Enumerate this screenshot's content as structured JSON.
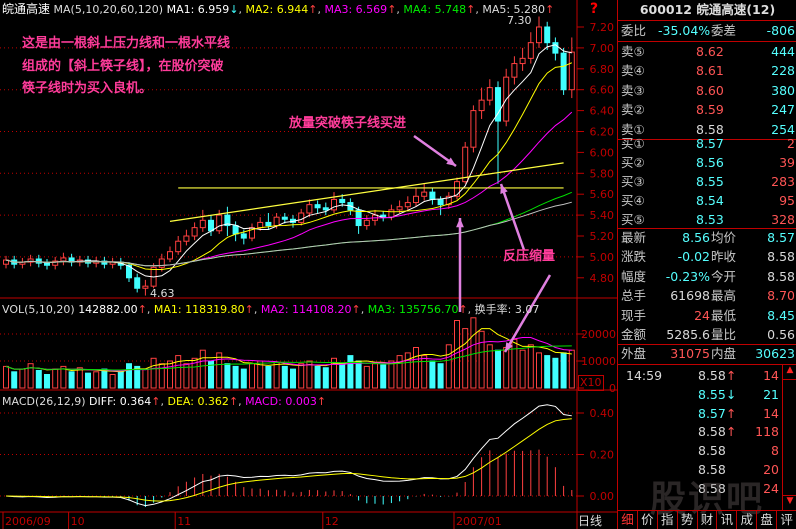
{
  "stock_title": "皖通高速",
  "ma_header": {
    "label": "MA(5,10,20,60,120)",
    "ma1": "MA1: 6.959",
    "ma2": "MA2: 6.944",
    "ma3": "MA3: 6.569",
    "ma4": "MA4: 5.748",
    "ma5": "MA5: 5.280",
    "up": "↑",
    "down": "↓",
    "sep": ","
  },
  "vol_header": {
    "label": "VOL(5,10,20)",
    "value": "142882.00",
    "ma1": "MA1: 118319.80",
    "ma2": "MA2: 114108.20",
    "ma3": "MA3: 135756.70",
    "turnover": "换手率: 3.07"
  },
  "macd_header": {
    "label": "MACD(26,12,9)",
    "diff": "DIFF: 0.364",
    "dea": "DEA: 0.362",
    "macd": "MACD: 0.003"
  },
  "help_icon": "?",
  "period_label": "日线",
  "vol_multiplier": "X10",
  "annotations": {
    "intro": [
      "这是由一根斜上压力线和一根水平线",
      "组成的【斜上筷子线】，在股价突破",
      "筷子线时为买入良机。"
    ],
    "breakout": "放量突破筷子线买进",
    "pullback": "反压缩量",
    "high_label": "7.30",
    "low_label": "4.63"
  },
  "colors": {
    "up": "#ff4040",
    "down": "#40ffff",
    "ma1": "#ffffff",
    "ma2": "#ffff00",
    "ma3": "#ff00ff",
    "ma4": "#00e000",
    "ma5": "#c0c0c0",
    "grid": "#c00000",
    "note": "#ff3c9a"
  },
  "chart_data": {
    "type": "candlestick",
    "price_axis": {
      "ticks": [
        "7.20",
        "7.00",
        "6.80",
        "6.60",
        "6.40",
        "6.20",
        "6.00",
        "5.80",
        "5.60",
        "5.40",
        "5.20",
        "5.00",
        "4.80"
      ],
      "range": [
        4.6,
        7.35
      ]
    },
    "volume_axis": {
      "ticks": [
        "20000",
        "10000",
        "0"
      ]
    },
    "macd_axis": {
      "ticks": [
        "0.40",
        "0.20",
        "0.00"
      ]
    },
    "date_ticks": [
      {
        "label": "2006/09",
        "index": 0
      },
      {
        "label": "10",
        "index": 8
      },
      {
        "label": "11",
        "index": 21
      },
      {
        "label": "12",
        "index": 39
      },
      {
        "label": "2007/01",
        "index": 55
      }
    ],
    "open": [
      4.93,
      4.97,
      4.93,
      4.95,
      4.98,
      4.94,
      4.92,
      4.96,
      4.99,
      4.95,
      4.97,
      4.94,
      4.96,
      4.93,
      4.95,
      4.92,
      4.8,
      4.7,
      4.72,
      4.9,
      4.98,
      5.05,
      5.15,
      5.2,
      5.28,
      5.35,
      5.25,
      5.4,
      5.3,
      5.22,
      5.18,
      5.28,
      5.33,
      5.3,
      5.38,
      5.36,
      5.33,
      5.42,
      5.5,
      5.47,
      5.45,
      5.55,
      5.52,
      5.45,
      5.3,
      5.35,
      5.4,
      5.38,
      5.45,
      5.48,
      5.52,
      5.58,
      5.62,
      5.55,
      5.5,
      5.58,
      5.72,
      6.05,
      6.4,
      6.5,
      6.62,
      6.3,
      6.72,
      6.85,
      6.9,
      7.05,
      7.2,
      7.05,
      6.95,
      6.6
    ],
    "high": [
      5.01,
      5.01,
      4.99,
      5.02,
      5.02,
      4.98,
      5.0,
      5.04,
      5.03,
      5.01,
      5.01,
      5.0,
      5.0,
      4.99,
      4.99,
      4.95,
      4.84,
      4.78,
      4.94,
      5.03,
      5.1,
      5.2,
      5.26,
      5.33,
      5.45,
      5.4,
      5.45,
      5.48,
      5.34,
      5.26,
      5.32,
      5.38,
      5.42,
      5.42,
      5.42,
      5.4,
      5.46,
      5.55,
      5.54,
      5.52,
      5.62,
      5.6,
      5.56,
      5.48,
      5.4,
      5.45,
      5.44,
      5.5,
      5.54,
      5.58,
      5.66,
      5.7,
      5.66,
      5.58,
      5.62,
      5.76,
      6.1,
      6.45,
      6.62,
      6.7,
      6.68,
      6.8,
      6.92,
      7.0,
      7.15,
      7.3,
      7.25,
      7.1,
      7.0,
      7.1
    ],
    "low": [
      4.89,
      4.89,
      4.89,
      4.91,
      4.9,
      4.88,
      4.88,
      4.92,
      4.91,
      4.91,
      4.9,
      4.9,
      4.89,
      4.89,
      4.88,
      4.76,
      4.66,
      4.63,
      4.7,
      4.86,
      4.95,
      5.02,
      5.11,
      5.16,
      5.24,
      5.2,
      5.22,
      5.2,
      5.15,
      5.12,
      5.15,
      5.25,
      5.26,
      5.27,
      5.32,
      5.28,
      5.3,
      5.38,
      5.42,
      5.4,
      5.42,
      5.48,
      5.4,
      5.22,
      5.26,
      5.3,
      5.34,
      5.35,
      5.42,
      5.45,
      5.48,
      5.54,
      5.5,
      5.4,
      5.46,
      5.55,
      5.7,
      6.0,
      6.32,
      6.45,
      5.7,
      6.25,
      6.65,
      6.78,
      6.85,
      7.0,
      6.98,
      6.88,
      6.55,
      6.52
    ],
    "close": [
      4.97,
      4.93,
      4.95,
      4.98,
      4.94,
      4.92,
      4.96,
      4.99,
      4.95,
      4.97,
      4.94,
      4.96,
      4.93,
      4.95,
      4.92,
      4.8,
      4.7,
      4.72,
      4.9,
      4.98,
      5.05,
      5.15,
      5.2,
      5.28,
      5.35,
      5.25,
      5.4,
      5.3,
      5.22,
      5.18,
      5.28,
      5.33,
      5.3,
      5.38,
      5.36,
      5.33,
      5.42,
      5.5,
      5.47,
      5.45,
      5.55,
      5.52,
      5.45,
      5.3,
      5.35,
      5.4,
      5.38,
      5.45,
      5.48,
      5.52,
      5.58,
      5.62,
      5.55,
      5.5,
      5.58,
      5.72,
      6.05,
      6.4,
      6.5,
      6.62,
      6.3,
      6.72,
      6.85,
      6.9,
      7.05,
      7.2,
      7.05,
      6.95,
      6.6,
      6.96
    ],
    "volume": [
      8000,
      6000,
      7000,
      9000,
      6500,
      5000,
      7000,
      8000,
      6000,
      7500,
      5500,
      6000,
      7000,
      5000,
      6500,
      9000,
      8000,
      7000,
      11000,
      9000,
      10000,
      12000,
      9000,
      11000,
      14000,
      10000,
      13000,
      9000,
      8000,
      7000,
      9000,
      10000,
      8000,
      9500,
      8000,
      7000,
      9000,
      10000,
      8000,
      7500,
      11000,
      9000,
      12000,
      10000,
      8000,
      9000,
      8500,
      10000,
      12000,
      13000,
      15000,
      12000,
      10000,
      9000,
      16000,
      25000,
      22000,
      26000,
      21000,
      16000,
      14000,
      15000,
      18000,
      14000,
      16000,
      13000,
      12000,
      11000,
      13000,
      14000
    ],
    "ma_periods": [
      5,
      10,
      20,
      60,
      120
    ],
    "trend_lines": [
      {
        "kind": "rising-resistance",
        "from": {
          "index": 20,
          "price": 5.34
        },
        "to": {
          "index": 68,
          "price": 5.9
        }
      },
      {
        "kind": "horizontal",
        "from": {
          "index": 21,
          "price": 5.66
        },
        "to": {
          "index": 68,
          "price": 5.66
        }
      }
    ]
  },
  "quote_panel": {
    "title": "600012 皖通高速(12)",
    "ratio": {
      "label": "委比",
      "value": "-35.04%",
      "diff_label": "委差",
      "diff": "-806"
    },
    "asks": [
      {
        "label": "卖⑤",
        "price": "8.62",
        "qty": "444"
      },
      {
        "label": "卖④",
        "price": "8.61",
        "qty": "228"
      },
      {
        "label": "卖③",
        "price": "8.60",
        "qty": "380"
      },
      {
        "label": "卖②",
        "price": "8.59",
        "qty": "247"
      },
      {
        "label": "卖①",
        "price": "8.58",
        "qty": "254"
      }
    ],
    "bids": [
      {
        "label": "买①",
        "price": "8.57",
        "qty": "2"
      },
      {
        "label": "买②",
        "price": "8.56",
        "qty": "39"
      },
      {
        "label": "买③",
        "price": "8.55",
        "qty": "283"
      },
      {
        "label": "买④",
        "price": "8.54",
        "qty": "95"
      },
      {
        "label": "买⑤",
        "price": "8.53",
        "qty": "328"
      }
    ],
    "stats": [
      {
        "l1": "最新",
        "v1": "8.56",
        "c1": "cyan",
        "l2": "均价",
        "v2": "8.57",
        "c2": "cyan"
      },
      {
        "l1": "涨跌",
        "v1": "-0.02",
        "c1": "cyan",
        "l2": "昨收",
        "v2": "8.58",
        "c2": "wht"
      },
      {
        "l1": "幅度",
        "v1": "-0.23%",
        "c1": "cyan",
        "l2": "今开",
        "v2": "8.58",
        "c2": "wht"
      },
      {
        "l1": "总手",
        "v1": "61698",
        "c1": "wht",
        "l2": "最高",
        "v2": "8.70",
        "c2": "red"
      },
      {
        "l1": "现手",
        "v1": "24",
        "c1": "red",
        "l2": "最低",
        "v2": "8.45",
        "c2": "cyan"
      },
      {
        "l1": "金额",
        "v1": "5285.6",
        "c1": "wht",
        "l2": "量比",
        "v2": "0.56",
        "c2": "wht"
      }
    ],
    "outer": {
      "label": "外盘",
      "value": "31075",
      "inner_label": "内盘",
      "inner": "30623"
    },
    "ticks": [
      {
        "time": "14:59",
        "price": "8.58",
        "dir": "↑",
        "vol": "14",
        "pc": "wht",
        "vc": "red"
      },
      {
        "time": "",
        "price": "8.55",
        "dir": "↓",
        "vol": "21",
        "pc": "cyan",
        "vc": "cyan"
      },
      {
        "time": "",
        "price": "8.57",
        "dir": "↑",
        "vol": "14",
        "pc": "cyan",
        "vc": "red"
      },
      {
        "time": "",
        "price": "8.58",
        "dir": "↑",
        "vol": "118",
        "pc": "wht",
        "vc": "red"
      },
      {
        "time": "",
        "price": "8.58",
        "dir": "",
        "vol": "8",
        "pc": "wht",
        "vc": "red"
      },
      {
        "time": "",
        "price": "8.58",
        "dir": "",
        "vol": "20",
        "pc": "wht",
        "vc": "red"
      },
      {
        "time": "",
        "price": "8.58",
        "dir": "",
        "vol": "24",
        "pc": "wht",
        "vc": "red"
      }
    ],
    "scroll_up": "▲",
    "scroll_down": "▼",
    "tabs": [
      "细",
      "价",
      "指",
      "势",
      "财",
      "讯",
      "成",
      "盘",
      "评"
    ],
    "watermark": "股识吧"
  }
}
